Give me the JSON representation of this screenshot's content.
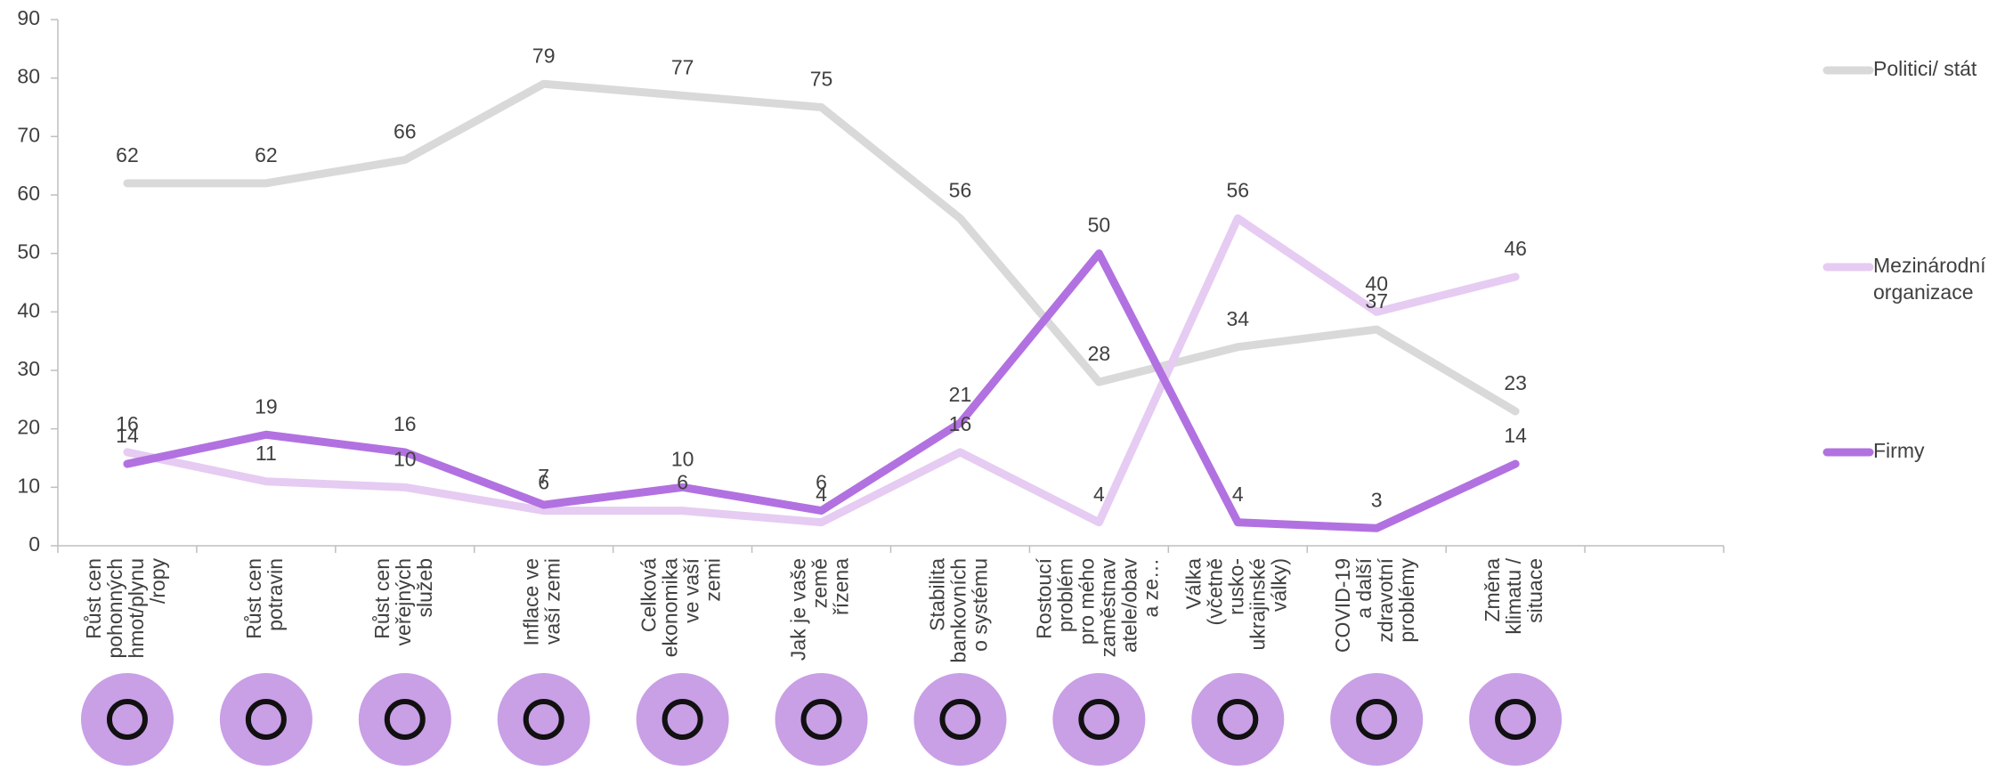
{
  "chart_data": {
    "type": "line",
    "categories": [
      "Růst cen\npohonných\nhmot/plynu\n/ropy",
      "Růst cen\npotravin",
      "Růst cen\nveřejných\nslužeb",
      "Inflace ve\nvaší zemi",
      "Celková\nekonomika\nve vaší\nzemi",
      "Jak je vaše\nzemě\nřízena",
      "Stabilita\nbankovních\no systému",
      "Rostoucí\nproblém\npro mého\nzaměstnav\natele/obav\na ze…",
      "Válka\n(včetně\nrusko-\nukrajinské\nválky)",
      "COVID-19\na další\nzdravotní\nproblémy",
      "Změna\nklimatu /\nsituace"
    ],
    "series": [
      {
        "name": "Politici/ stát",
        "color": "#d9d9d9",
        "values": [
          62,
          62,
          66,
          79,
          77,
          75,
          56,
          28,
          34,
          37,
          23
        ]
      },
      {
        "name": "Mezinárodní\norganizace",
        "color": "#e6cbf2",
        "values": [
          16,
          11,
          10,
          6,
          6,
          4,
          16,
          4,
          56,
          40,
          46
        ]
      },
      {
        "name": "Firmy",
        "color": "#b271e0",
        "values": [
          14,
          19,
          16,
          7,
          10,
          6,
          21,
          50,
          4,
          3,
          14
        ]
      }
    ],
    "ylim": [
      0,
      90
    ],
    "yticks": [
      0,
      10,
      20,
      30,
      40,
      50,
      60,
      70,
      80,
      90
    ],
    "legend": "right"
  }
}
